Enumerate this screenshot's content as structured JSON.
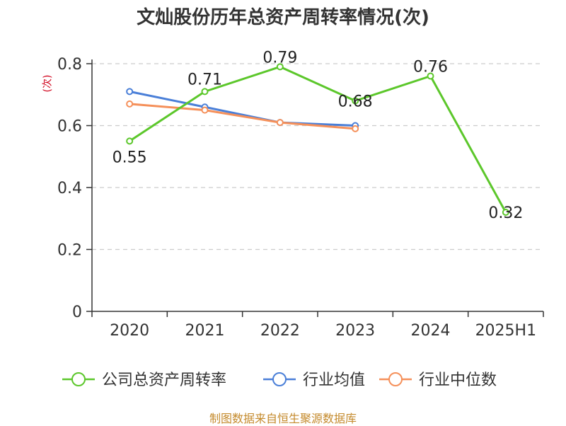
{
  "title": "文灿股份历年总资产周转率情况(次)",
  "unit": "(次)",
  "source": "制图数据来自恒生聚源数据库",
  "chart_data": {
    "type": "line",
    "categories": [
      "2020",
      "2021",
      "2022",
      "2023",
      "2024",
      "2025H1"
    ],
    "ylim": [
      0,
      0.8
    ],
    "yticks": [
      0,
      0.2,
      0.4,
      0.6,
      0.8
    ],
    "ytick_labels": [
      "0",
      "0.2",
      "0.4",
      "0.6",
      "0.8"
    ],
    "grid": true,
    "legend_position": "bottom",
    "series": [
      {
        "name": "公司总资产周转率",
        "color": "#5cc72b",
        "values": [
          0.55,
          0.71,
          0.79,
          0.68,
          0.76,
          0.32
        ],
        "labels": [
          "0.55",
          "0.71",
          "0.79",
          "0.68",
          "0.76",
          "0.32"
        ],
        "show_labels": true
      },
      {
        "name": "行业均值",
        "color": "#4a7fd8",
        "values": [
          0.71,
          0.66,
          0.61,
          0.6,
          null,
          null
        ],
        "show_labels": false
      },
      {
        "name": "行业中位数",
        "color": "#f5905a",
        "values": [
          0.67,
          0.65,
          0.61,
          0.59,
          null,
          null
        ],
        "show_labels": false
      }
    ]
  }
}
